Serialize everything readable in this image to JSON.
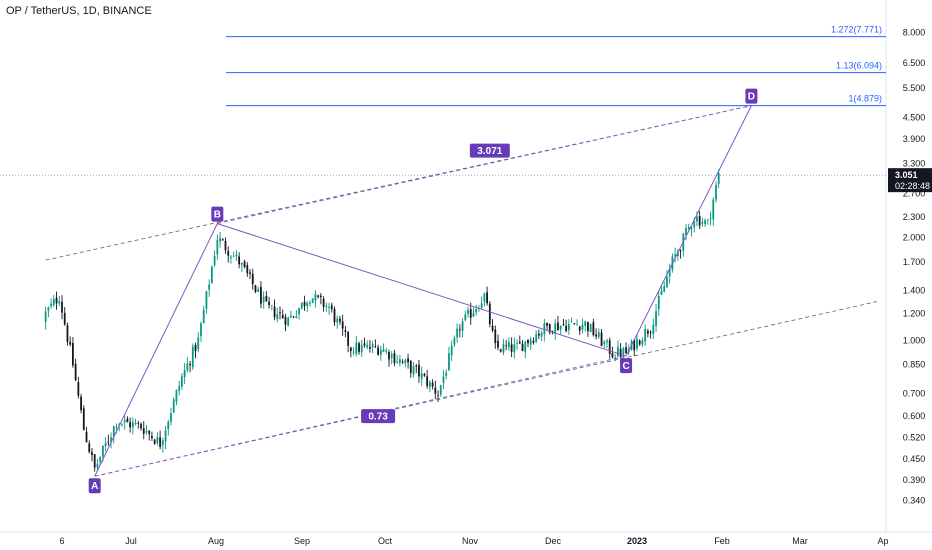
{
  "header": {
    "symbol_title": "OP / TetherUS, 1D, BINANCE"
  },
  "colors": {
    "up": "#089981",
    "down": "#131722",
    "pattern": "#7e57c2",
    "fib": "#2962ff",
    "label_bg": "#673ab7",
    "label_text": "#ffffff",
    "price_tag_bg": "#131722",
    "axis_text": "#131722"
  },
  "chart_data": {
    "type": "candlestick",
    "title": "OP / TetherUS, 1D, BINANCE",
    "y_scale": "log",
    "ylim": [
      0.31,
      9.3
    ],
    "y_ticks": [
      "8.000",
      "6.500",
      "5.500",
      "4.500",
      "3.900",
      "3.300",
      "2.700",
      "2.300",
      "2.000",
      "1.700",
      "1.400",
      "1.200",
      "1.000",
      "0.850",
      "0.700",
      "0.600",
      "0.520",
      "0.450",
      "0.390",
      "0.340"
    ],
    "x_ticks": [
      "6",
      "Jul",
      "Aug",
      "Sep",
      "Oct",
      "Nov",
      "Dec",
      "2023",
      "Feb",
      "Mar",
      "Ap"
    ],
    "current_price": {
      "price": "3.051",
      "countdown": "02:28:48",
      "value": 3.051
    },
    "harmonic_points": [
      {
        "label": "A",
        "date": "2022-06-18",
        "price": 0.4
      },
      {
        "label": "B",
        "date": "2022-08-02",
        "price": 2.2
      },
      {
        "label": "C",
        "date": "2022-12-30",
        "price": 0.9
      },
      {
        "label": "D",
        "date": "2023-02-14",
        "price": 4.879
      }
    ],
    "channel_labels": [
      {
        "text": "3.071",
        "date": "2022-11-10",
        "price": 3.6
      },
      {
        "text": "0.73",
        "date": "2022-09-30",
        "price": 0.6
      }
    ],
    "channel_lines": [
      {
        "from": {
          "date": "2022-05-31",
          "price": 1.72
        },
        "to": {
          "date": "2023-02-14",
          "price": 4.879
        }
      },
      {
        "from": {
          "date": "2022-06-18",
          "price": 0.4
        },
        "to": {
          "date": "2023-04-01",
          "price": 1.3
        }
      }
    ],
    "fib_levels": [
      {
        "label": "1.272(7.771)",
        "value": 7.771
      },
      {
        "label": "1.13(6.094)",
        "value": 6.094
      },
      {
        "label": "1(4.879)",
        "value": 4.879
      }
    ],
    "price_path": [
      {
        "date": "2022-05-31",
        "close": 1.2
      },
      {
        "date": "2022-06-05",
        "close": 1.35
      },
      {
        "date": "2022-06-10",
        "close": 0.85
      },
      {
        "date": "2022-06-14",
        "close": 0.55
      },
      {
        "date": "2022-06-18",
        "close": 0.42
      },
      {
        "date": "2022-06-26",
        "close": 0.58
      },
      {
        "date": "2022-07-05",
        "close": 0.56
      },
      {
        "date": "2022-07-12",
        "close": 0.5
      },
      {
        "date": "2022-07-20",
        "close": 0.78
      },
      {
        "date": "2022-07-26",
        "close": 1.0
      },
      {
        "date": "2022-08-02",
        "close": 2.0
      },
      {
        "date": "2022-08-10",
        "close": 1.7
      },
      {
        "date": "2022-08-20",
        "close": 1.25
      },
      {
        "date": "2022-08-28",
        "close": 1.15
      },
      {
        "date": "2022-09-05",
        "close": 1.35
      },
      {
        "date": "2022-09-12",
        "close": 1.25
      },
      {
        "date": "2022-09-20",
        "close": 0.95
      },
      {
        "date": "2022-10-01",
        "close": 0.95
      },
      {
        "date": "2022-10-15",
        "close": 0.8
      },
      {
        "date": "2022-10-22",
        "close": 0.7
      },
      {
        "date": "2022-10-30",
        "close": 1.1
      },
      {
        "date": "2022-11-08",
        "close": 1.35
      },
      {
        "date": "2022-11-12",
        "close": 0.95
      },
      {
        "date": "2022-11-20",
        "close": 0.95
      },
      {
        "date": "2022-12-01",
        "close": 1.1
      },
      {
        "date": "2022-12-15",
        "close": 1.12
      },
      {
        "date": "2022-12-25",
        "close": 0.92
      },
      {
        "date": "2022-12-30",
        "close": 0.92
      },
      {
        "date": "2023-01-08",
        "close": 1.1
      },
      {
        "date": "2023-01-16",
        "close": 1.7
      },
      {
        "date": "2023-01-24",
        "close": 2.3
      },
      {
        "date": "2023-01-29",
        "close": 2.2
      },
      {
        "date": "2023-02-02",
        "close": 3.05
      }
    ]
  }
}
